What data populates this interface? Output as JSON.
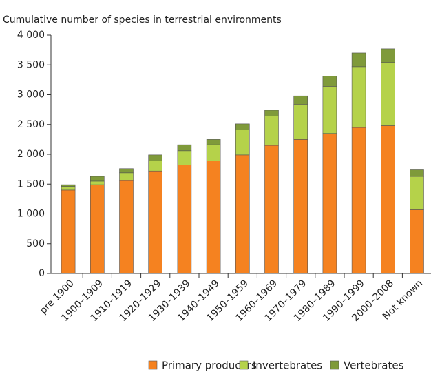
{
  "chart_data": {
    "type": "stacked_bar",
    "title": "Cumulative number of species in terrestrial environments",
    "categories": [
      "pre 1900",
      "1900–1909",
      "1910–1919",
      "1920–1929",
      "1930–1939",
      "1940–1949",
      "1950–1959",
      "1960–1969",
      "1970–1979",
      "1980–1989",
      "1990–1999",
      "2000–2008",
      "Not known"
    ],
    "series": [
      {
        "name": "Primary producers",
        "color": "#f58220",
        "values": [
          1400,
          1490,
          1560,
          1720,
          1820,
          1890,
          1990,
          2150,
          2250,
          2350,
          2450,
          2480,
          1070
        ]
      },
      {
        "name": "Invertebrates",
        "color": "#b5d24a",
        "values": [
          60,
          60,
          130,
          170,
          240,
          270,
          420,
          490,
          590,
          790,
          1020,
          1060,
          560
        ]
      },
      {
        "name": "Vertebrates",
        "color": "#7f9a3a",
        "values": [
          30,
          80,
          70,
          100,
          100,
          90,
          100,
          100,
          140,
          170,
          230,
          230,
          110
        ]
      }
    ],
    "ylim": [
      0,
      4000
    ],
    "yticks": [
      0,
      500,
      {
        "value": 1000,
        "label": "1 000"
      },
      {
        "value": 1500,
        "label": "1 500"
      },
      {
        "value": 2000,
        "label": "2 000"
      },
      {
        "value": 2500,
        "label": "2 500"
      },
      {
        "value": 3000,
        "label": "3 000"
      },
      {
        "value": 3500,
        "label": "3 500"
      },
      {
        "value": 4000,
        "label": "4 000"
      }
    ],
    "grid": false,
    "legend": "bottom"
  }
}
